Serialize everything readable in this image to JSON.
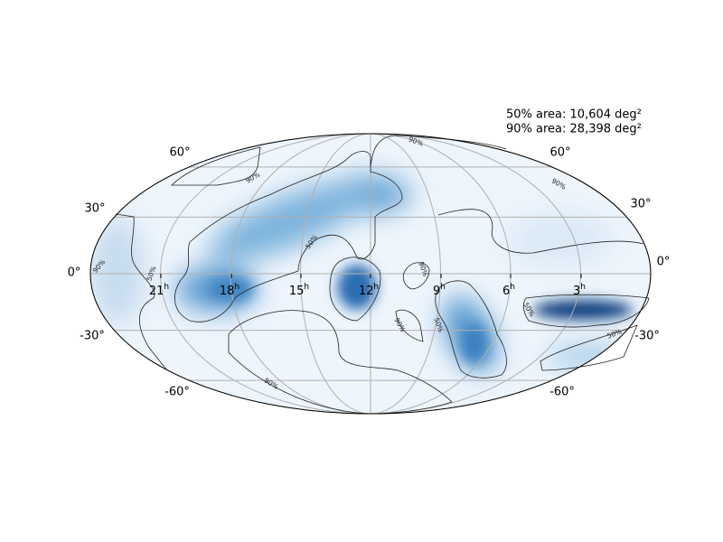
{
  "annotations": [
    "50% area: 10,604 deg²",
    "90% area: 28,398 deg²"
  ],
  "ra_labels": [
    {
      "hour": "21",
      "unit": "h"
    },
    {
      "hour": "18",
      "unit": "h"
    },
    {
      "hour": "15",
      "unit": "h"
    },
    {
      "hour": "12",
      "unit": "h"
    },
    {
      "hour": "9",
      "unit": "h"
    },
    {
      "hour": "6",
      "unit": "h"
    },
    {
      "hour": "3",
      "unit": "h"
    }
  ],
  "dec_labels": [
    "60°",
    "30°",
    "0°",
    "-30°",
    "-60°"
  ],
  "contour_labels": [
    "90%",
    "90%",
    "90%",
    "90%",
    "90%",
    "90%",
    "90%",
    "50%",
    "50%",
    "50%",
    "50%",
    "50%"
  ]
}
